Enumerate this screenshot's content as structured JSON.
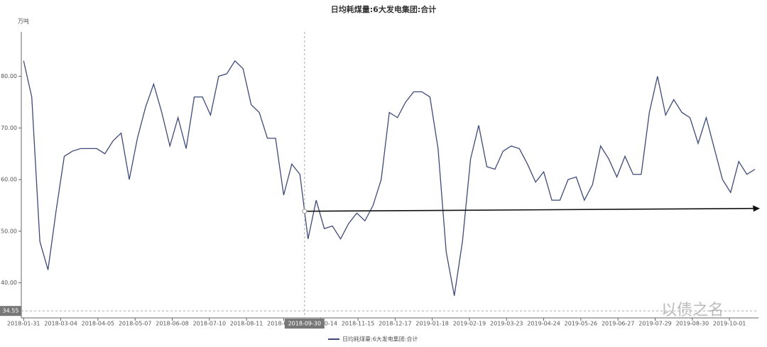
{
  "chart_data": {
    "type": "line",
    "title": "日均耗煤量:6大发电集团:合计",
    "y_unit": "万吨",
    "x": [
      "2018-01-31",
      "2018-02-07",
      "2018-02-14",
      "2018-02-21",
      "2018-02-28",
      "2018-03-07",
      "2018-03-14",
      "2018-03-21",
      "2018-03-28",
      "2018-04-04",
      "2018-04-11",
      "2018-04-18",
      "2018-04-25",
      "2018-05-02",
      "2018-05-09",
      "2018-05-16",
      "2018-05-23",
      "2018-05-30",
      "2018-06-06",
      "2018-06-13",
      "2018-06-20",
      "2018-06-27",
      "2018-07-04",
      "2018-07-11",
      "2018-07-18",
      "2018-07-25",
      "2018-08-01",
      "2018-08-08",
      "2018-08-15",
      "2018-08-22",
      "2018-08-29",
      "2018-09-05",
      "2018-09-12",
      "2018-09-19",
      "2018-09-26",
      "2018-10-03",
      "2018-10-10",
      "2018-10-17",
      "2018-10-24",
      "2018-10-31",
      "2018-11-07",
      "2018-11-14",
      "2018-11-21",
      "2018-11-28",
      "2018-12-05",
      "2018-12-12",
      "2018-12-19",
      "2018-12-26",
      "2019-01-02",
      "2019-01-09",
      "2019-01-16",
      "2019-01-23",
      "2019-01-30",
      "2019-02-06",
      "2019-02-13",
      "2019-02-20",
      "2019-02-27",
      "2019-03-06",
      "2019-03-13",
      "2019-03-20",
      "2019-03-27",
      "2019-04-03",
      "2019-04-10",
      "2019-04-17",
      "2019-04-24",
      "2019-05-01",
      "2019-05-08",
      "2019-05-15",
      "2019-05-22",
      "2019-05-29",
      "2019-06-05",
      "2019-06-12",
      "2019-06-19",
      "2019-06-26",
      "2019-07-03",
      "2019-07-10",
      "2019-07-17",
      "2019-07-24",
      "2019-07-31",
      "2019-08-07",
      "2019-08-14",
      "2019-08-21",
      "2019-08-28",
      "2019-09-04",
      "2019-09-11",
      "2019-09-18",
      "2019-09-25",
      "2019-10-02",
      "2019-10-09",
      "2019-10-16",
      "2019-10-23"
    ],
    "series": [
      {
        "name": "日均耗煤量:6大发电集团:合计",
        "color": "#3d4a7a",
        "values": [
          83,
          76,
          48,
          42.5,
          54,
          64.5,
          65.5,
          66,
          66,
          66,
          65,
          67.5,
          69,
          60,
          68,
          74,
          78.5,
          73,
          66.5,
          72,
          66,
          76,
          76,
          72.5,
          80,
          80.5,
          83,
          81.5,
          74.5,
          73,
          68,
          68,
          57,
          63,
          61,
          48.5,
          56,
          50.5,
          51,
          48.5,
          51.5,
          53.5,
          52,
          55,
          60,
          73,
          72,
          75,
          77,
          77,
          76,
          66,
          46,
          37.5,
          48,
          64,
          70.5,
          62.5,
          62,
          65.5,
          66.5,
          66,
          63,
          59.5,
          61.5,
          56,
          56,
          60,
          60.5,
          56,
          59,
          66.5,
          64,
          60.5,
          64.5,
          61,
          61,
          73,
          80,
          72.5,
          75.5,
          73,
          72,
          67,
          72,
          66,
          60,
          57.5,
          63.5,
          61,
          62
        ]
      }
    ],
    "xlim": [
      "2018-01-29",
      "2019-10-26"
    ],
    "xticks": [
      "2018-01-31",
      "2018-03-04",
      "2018-04-05",
      "2018-05-07",
      "2018-06-08",
      "2018-07-10",
      "2018-08-11",
      "2018-09-12",
      "2018-10-14",
      "2018-11-15",
      "2018-12-17",
      "2019-01-18",
      "2019-02-19",
      "2019-03-23",
      "2019-04-24",
      "2019-05-26",
      "2019-06-27",
      "2019-07-29",
      "2019-08-30",
      "2019-10-01"
    ],
    "ylim": [
      33.2,
      88.6
    ],
    "yticks": [
      {
        "value": 40,
        "label": "40.00"
      },
      {
        "value": 50,
        "label": "50.00"
      },
      {
        "value": 60,
        "label": "60.00"
      },
      {
        "value": 70,
        "label": "70.00"
      },
      {
        "value": 80,
        "label": "80.00"
      }
    ],
    "crosshair": {
      "x": "2018-09-30",
      "y": 34.55
    },
    "watermark": "以债之名"
  }
}
